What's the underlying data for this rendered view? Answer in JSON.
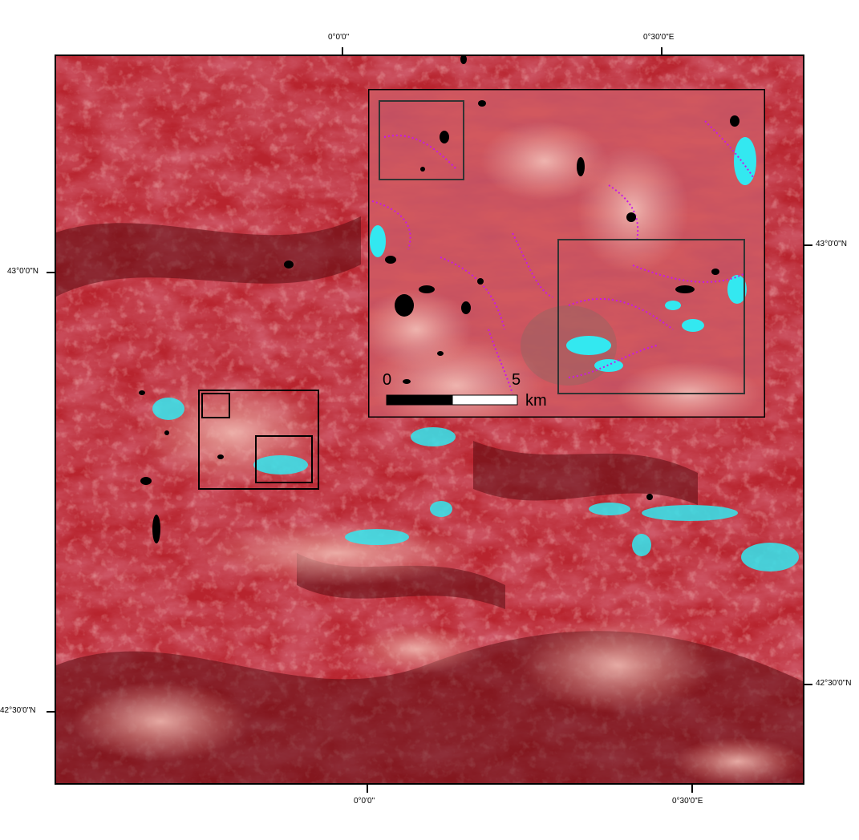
{
  "map": {
    "graticule": {
      "top": [
        "0°0'0\"",
        "0°30'0\"E"
      ],
      "bottom": [
        "0°0'0\"",
        "0°30'0\"E"
      ],
      "left": [
        "43°0'0\"N",
        "42°30'0\"N"
      ],
      "right": [
        "43°0'0\"N",
        "42°30'0\"N"
      ]
    },
    "scale_bar": {
      "start": "0",
      "end": "5",
      "unit": "km"
    },
    "colors": {
      "vegetation": "#b8242e",
      "dark_vegetation": "#5a0c12",
      "bare_rock": "#e39a94",
      "snow_ice": "#33e8f0",
      "classification_edge": "#c818e8",
      "lakes": "#000000",
      "inset_frame": "#000000",
      "subset_frame": "#333333"
    }
  }
}
